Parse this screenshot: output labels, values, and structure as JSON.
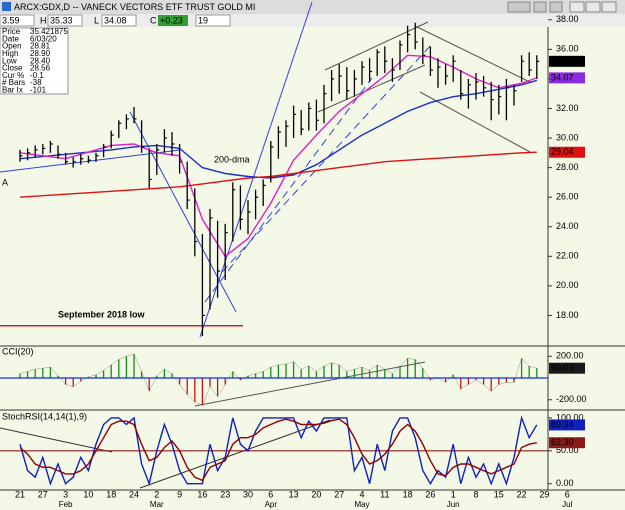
{
  "header": {
    "title": "ARCX:GDX,D -- VANECK VECTORS ETF TRUST GOLD MI",
    "quote": [
      "3.59",
      "H",
      "35.33",
      "L",
      "34.08",
      "C",
      "+0.23",
      "19"
    ],
    "info": [
      [
        "Price",
        "35.421875"
      ],
      [
        "Date",
        "6/03/20"
      ],
      [
        "Open",
        "28.81"
      ],
      [
        "High",
        "28.90"
      ],
      [
        "Low",
        "28.40"
      ],
      [
        "Close",
        "28.56"
      ],
      [
        "Cur %",
        "-0.1"
      ],
      [
        "# Bars",
        "-38"
      ],
      [
        "Bar Ix",
        "-101"
      ]
    ]
  },
  "chart_data": [
    {
      "type": "ohlc",
      "color": "#000000",
      "categories": [
        "21",
        null,
        null,
        "27",
        null,
        null,
        "3",
        null,
        null,
        "10",
        null,
        null,
        "18",
        null,
        null,
        "24",
        null,
        null,
        "2",
        null,
        null,
        "9",
        null,
        null,
        "16",
        null,
        null,
        "23",
        null,
        null,
        "30",
        null,
        null,
        "6",
        null,
        null,
        "13",
        null,
        null,
        "20",
        null,
        null,
        "27",
        null,
        null,
        "4",
        null,
        null,
        "11",
        null,
        null,
        "18",
        null,
        null,
        "26",
        null,
        null,
        "1",
        null,
        null,
        "8",
        null,
        null,
        "15",
        null,
        null,
        "22",
        null,
        null,
        "29",
        null,
        null,
        "6",
        null,
        null
      ],
      "months": [
        null,
        null,
        null,
        null,
        null,
        null,
        "Feb",
        null,
        null,
        null,
        null,
        null,
        null,
        null,
        null,
        null,
        null,
        null,
        "Mar",
        null,
        null,
        null,
        null,
        null,
        null,
        null,
        null,
        null,
        null,
        null,
        null,
        null,
        null,
        "Apr",
        null,
        null,
        null,
        null,
        null,
        null,
        null,
        null,
        null,
        null,
        null,
        "May",
        null,
        null,
        null,
        null,
        null,
        null,
        null,
        null,
        null,
        null,
        null,
        "Jun",
        null,
        null,
        null,
        null,
        null,
        null,
        null,
        null,
        null,
        null,
        null,
        null,
        null,
        null,
        "Jul",
        null,
        null
      ],
      "high": [
        29.2,
        29.3,
        29.5,
        29.6,
        29.8,
        29.5,
        29.0,
        28.7,
        28.9,
        28.8,
        29.0,
        29.6,
        30.5,
        31.2,
        31.6,
        32.1,
        31.2,
        29.2,
        29.6,
        30.6,
        30.4,
        29.6,
        28.4,
        26.6,
        23.5,
        25.2,
        24.4,
        24.2,
        27.0,
        26.8,
        25.8,
        26.5,
        27.2,
        29.8,
        30.8,
        31.2,
        32.2,
        31.9,
        32.4,
        32.6,
        33.6,
        34.6,
        35.0,
        34.8,
        34.6,
        35.2,
        35.4,
        36.0,
        36.2,
        35.4,
        36.6,
        37.6,
        37.8,
        36.8,
        36.2,
        35.4,
        35.0,
        35.6,
        34.6,
        34.0,
        34.4,
        34.2,
        33.8,
        33.6,
        34.0,
        33.6,
        35.6,
        35.8,
        35.6,
        null,
        null,
        null,
        null,
        null,
        null
      ],
      "low": [
        28.4,
        28.5,
        28.7,
        28.9,
        29.0,
        28.6,
        28.2,
        28.0,
        28.2,
        28.3,
        28.4,
        28.7,
        29.3,
        30.0,
        30.6,
        31.0,
        29.0,
        26.6,
        27.5,
        29.0,
        28.8,
        27.6,
        25.2,
        22.0,
        16.6,
        18.4,
        19.2,
        20.4,
        23.0,
        23.8,
        23.5,
        24.5,
        25.4,
        27.0,
        28.6,
        29.4,
        30.0,
        30.2,
        30.5,
        30.5,
        31.0,
        32.5,
        33.0,
        32.6,
        32.8,
        33.6,
        33.8,
        34.2,
        34.4,
        33.8,
        34.6,
        35.8,
        36.0,
        35.0,
        34.2,
        33.4,
        33.6,
        33.8,
        32.6,
        32.0,
        32.6,
        32.8,
        31.2,
        31.6,
        31.2,
        32.2,
        33.8,
        34.2,
        34.0,
        null,
        null,
        null,
        null,
        null,
        null
      ],
      "close": [
        28.8,
        29.0,
        29.2,
        29.3,
        29.6,
        28.9,
        28.4,
        28.4,
        28.6,
        28.5,
        28.8,
        29.4,
        30.2,
        31.0,
        31.3,
        31.3,
        29.4,
        27.2,
        29.2,
        30.0,
        29.6,
        28.4,
        25.8,
        23.0,
        18.0,
        24.6,
        21.0,
        23.6,
        26.5,
        24.5,
        25.0,
        26.0,
        26.8,
        29.4,
        30.4,
        30.8,
        31.6,
        30.6,
        32.0,
        31.2,
        33.0,
        34.0,
        34.2,
        33.2,
        34.0,
        34.8,
        34.5,
        35.8,
        35.2,
        34.6,
        36.3,
        37.0,
        36.5,
        35.6,
        34.6,
        34.8,
        34.2,
        35.2,
        33.0,
        33.6,
        33.8,
        33.4,
        32.6,
        32.8,
        33.4,
        33.2,
        35.2,
        34.6,
        35.19,
        null,
        null,
        null,
        null,
        null,
        null
      ],
      "lines": [
        {
          "color": "#1a2fc8",
          "x": [
            0,
            6,
            12,
            15,
            18,
            21,
            24,
            27,
            30,
            33,
            36,
            39,
            42,
            45,
            48,
            51,
            54,
            57,
            60,
            63,
            66,
            68
          ],
          "values": [
            28.6,
            28.9,
            29.2,
            29.4,
            29.5,
            29.3,
            28.0,
            27.6,
            27.4,
            27.3,
            27.5,
            28.2,
            29.2,
            30.2,
            31.0,
            31.8,
            32.4,
            32.8,
            33.0,
            33.3,
            33.6,
            33.9
          ]
        },
        {
          "color": "#e020c8",
          "x": [
            0,
            6,
            12,
            15,
            18,
            21,
            24,
            27,
            30,
            33,
            36,
            39,
            42,
            45,
            48,
            51,
            54,
            57,
            60,
            63,
            66,
            68
          ],
          "values": [
            29.0,
            28.6,
            29.5,
            29.6,
            29.0,
            28.8,
            24.5,
            22.0,
            23.2,
            25.6,
            28.5,
            30.2,
            31.8,
            33.0,
            34.2,
            35.6,
            35.5,
            34.8,
            34.0,
            33.4,
            33.7,
            34.07
          ]
        },
        {
          "color": "#e01010",
          "x": [
            0,
            6,
            12,
            15,
            18,
            21,
            24,
            27,
            30,
            33,
            36,
            39,
            42,
            45,
            48,
            51,
            54,
            57,
            60,
            63,
            66,
            68
          ],
          "values": [
            26.0,
            26.2,
            26.4,
            26.5,
            26.6,
            26.7,
            26.9,
            27.1,
            27.3,
            27.4,
            27.6,
            27.8,
            28.0,
            28.2,
            28.4,
            28.5,
            28.6,
            28.7,
            28.8,
            28.9,
            29.0,
            29.04
          ]
        }
      ],
      "ylim": [
        16,
        39
      ],
      "yticks": [
        {
          "value": 18,
          "label": "18.00"
        },
        {
          "value": 20,
          "label": "20.00"
        },
        {
          "value": 22,
          "label": "22.00"
        },
        {
          "value": 24,
          "label": "24.00"
        },
        {
          "value": 26,
          "label": "26.00"
        },
        {
          "value": 28,
          "label": "28.00"
        },
        {
          "value": 30,
          "label": "30.00"
        },
        {
          "value": 32,
          "label": "32.00"
        },
        {
          "value": 34,
          "label": "34.00"
        },
        {
          "value": 36,
          "label": "36.00"
        },
        {
          "value": 38,
          "label": "38.00"
        }
      ],
      "markers": [
        {
          "value": 35.19,
          "color": "#000000"
        },
        {
          "value": 34.07,
          "color": "#8a2be2"
        },
        {
          "value": 29.04,
          "color": "#e01010"
        }
      ],
      "reference_line": {
        "value": 17.3,
        "color": "#cc0000"
      },
      "annotations": [
        {
          "text": "200-dma",
          "color": "#1a2fc8"
        },
        {
          "text": "September 2018 low",
          "color": "#e01010"
        },
        {
          "text": "A",
          "color": "#1a2fc8"
        }
      ]
    },
    {
      "type": "bar",
      "title": "CCI(20)",
      "up_color": "#109010",
      "down_color": "#d01010",
      "zero_color": "#1030e0",
      "values": [
        40,
        60,
        80,
        90,
        100,
        20,
        -60,
        -80,
        -30,
        10,
        30,
        70,
        120,
        170,
        200,
        220,
        60,
        -120,
        20,
        80,
        40,
        -60,
        -150,
        -220,
        -250,
        -80,
        -170,
        -60,
        60,
        -20,
        20,
        40,
        60,
        100,
        120,
        130,
        150,
        80,
        110,
        60,
        110,
        140,
        120,
        60,
        80,
        100,
        70,
        120,
        80,
        40,
        110,
        180,
        170,
        90,
        -20,
        0,
        -40,
        30,
        -100,
        -60,
        -20,
        -60,
        -120,
        -60,
        -40,
        -40,
        180,
        110,
        90.03,
        null,
        null,
        null,
        null,
        null,
        null
      ],
      "ylim": [
        -285,
        285
      ],
      "yticks": [
        {
          "value": 200,
          "label": "200.00"
        },
        {
          "value": -200,
          "label": "-200.00"
        }
      ],
      "markers": [
        {
          "value": 90.03,
          "color": "#1a1a1a"
        }
      ]
    },
    {
      "type": "line",
      "title": "StochRSI(14,14(1),9)",
      "series": [
        {
          "color": "#1020c0",
          "values": [
            60,
            20,
            10,
            40,
            0,
            30,
            0,
            10,
            40,
            20,
            60,
            90,
            100,
            100,
            90,
            100,
            30,
            0,
            50,
            90,
            60,
            20,
            0,
            0,
            0,
            60,
            20,
            40,
            100,
            60,
            50,
            80,
            100,
            100,
            100,
            100,
            100,
            70,
            95,
            80,
            100,
            100,
            100,
            100,
            20,
            40,
            0,
            60,
            20,
            80,
            100,
            100,
            70,
            20,
            0,
            20,
            10,
            60,
            0,
            40,
            10,
            30,
            0,
            30,
            0,
            40,
            100,
            70,
            89.34,
            null,
            null,
            null,
            null,
            null,
            null
          ]
        },
        {
          "color": "#900000",
          "values": [
            55,
            45,
            30,
            25,
            25,
            20,
            15,
            15,
            20,
            30,
            50,
            70,
            90,
            95,
            95,
            90,
            60,
            35,
            40,
            55,
            65,
            50,
            25,
            10,
            5,
            25,
            30,
            35,
            60,
            70,
            70,
            75,
            85,
            90,
            95,
            98,
            95,
            90,
            90,
            90,
            92,
            96,
            98,
            90,
            70,
            45,
            30,
            35,
            45,
            60,
            80,
            90,
            80,
            60,
            35,
            15,
            12,
            25,
            30,
            30,
            25,
            20,
            15,
            20,
            25,
            30,
            55,
            60,
            62.3,
            null,
            null,
            null,
            null,
            null,
            null
          ]
        }
      ],
      "ylim": [
        -8,
        109
      ],
      "yticks": [
        {
          "value": 100,
          "label": "100.00"
        },
        {
          "value": 50,
          "label": "50.00"
        },
        {
          "value": 0,
          "label": "0.00"
        }
      ],
      "reference_line": {
        "value": 50,
        "color": "#8b1a1a"
      },
      "markers": [
        {
          "value": 89.34,
          "color": "#1020c0"
        },
        {
          "value": 62.3,
          "label": "62.30",
          "color": "#8b1a1a"
        }
      ]
    }
  ]
}
